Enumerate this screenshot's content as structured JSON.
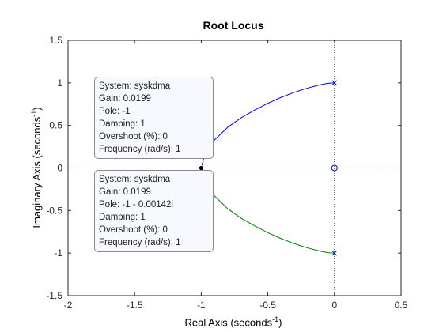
{
  "chart_data": {
    "type": "line",
    "title": "Root Locus",
    "xlabel": {
      "text": "Real Axis (seconds",
      "sup": "-1",
      "close": ")"
    },
    "ylabel": {
      "text": "Imaginary Axis (seconds",
      "sup": "-1",
      "close": ")"
    },
    "xlim": [
      -2,
      0.5
    ],
    "ylim": [
      -1.5,
      1.5
    ],
    "xticks": [
      -2,
      -1.5,
      -1,
      -0.5,
      0,
      0.5
    ],
    "yticks": [
      -1.5,
      -1,
      -0.5,
      0,
      0.5,
      1,
      1.5
    ],
    "xtick_labels": [
      "-2",
      "-1.5",
      "-1",
      "-0.5",
      "0",
      "0.5"
    ],
    "ytick_labels": [
      "-1.5",
      "-1",
      "-0.5",
      "0",
      "0.5",
      "1",
      "1.5"
    ],
    "grid": false,
    "colors": {
      "blue": "#0000ff",
      "green": "#008000",
      "axis": "#262626",
      "ref": "#333333"
    },
    "series": [
      {
        "color": "#0000ff",
        "x": [
          0,
          -0.02,
          -0.05,
          -0.1,
          -0.15,
          -0.2,
          -0.3,
          -0.4,
          -0.5,
          -0.6,
          -0.7,
          -0.8,
          -0.9,
          -0.95,
          -0.98,
          -1.0
        ],
        "y": [
          1.0,
          0.999,
          0.995,
          0.98,
          0.96,
          0.94,
          0.89,
          0.83,
          0.76,
          0.68,
          0.59,
          0.48,
          0.33,
          0.22,
          0.12,
          0.0
        ]
      },
      {
        "color": "#0000ff",
        "x": [
          0,
          -1.0
        ],
        "y": [
          0,
          0
        ]
      },
      {
        "color": "#008000",
        "x": [
          0,
          -0.02,
          -0.05,
          -0.1,
          -0.15,
          -0.2,
          -0.3,
          -0.4,
          -0.5,
          -0.6,
          -0.7,
          -0.8,
          -0.9,
          -0.95,
          -0.98,
          -1.0
        ],
        "y": [
          -1.0,
          -0.999,
          -0.995,
          -0.98,
          -0.96,
          -0.94,
          -0.89,
          -0.83,
          -0.76,
          -0.68,
          -0.59,
          -0.48,
          -0.33,
          -0.22,
          -0.12,
          0.0
        ]
      },
      {
        "color": "#008000",
        "x": [
          -1.0,
          -2.0
        ],
        "y": [
          0,
          0
        ]
      }
    ],
    "poles": [
      {
        "x": 0,
        "y": 1
      },
      {
        "x": 0,
        "y": -1
      }
    ],
    "zeros": [
      {
        "x": 0,
        "y": 0
      }
    ],
    "datatips": [
      {
        "x": -1,
        "y": 0,
        "lines": [
          "System: syskdma",
          "Gain: 0.0199",
          "Pole: -1",
          "Damping: 1",
          "Overshoot (%): 0",
          "Frequency (rad/s): 1"
        ]
      },
      {
        "x": -1,
        "y": 0,
        "lines": [
          "System: syskdma",
          "Gain: 0.0199",
          "Pole: -1 - 0.00142i",
          "Damping: 1",
          "Overshoot (%): 0",
          "Frequency (rad/s): 1"
        ]
      }
    ]
  }
}
